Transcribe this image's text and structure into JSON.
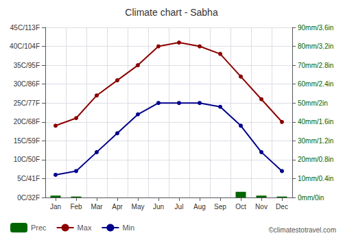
{
  "chart_data": {
    "type": "bar",
    "title": "Climate chart - Sabha",
    "categories": [
      "Jan",
      "Feb",
      "Mar",
      "Apr",
      "May",
      "Jun",
      "Jul",
      "Aug",
      "Sep",
      "Oct",
      "Nov",
      "Dec"
    ],
    "series": [
      {
        "name": "Prec",
        "type": "bar",
        "color": "#006400",
        "axis": "y2",
        "values": [
          1,
          0.5,
          0,
          0,
          0,
          0,
          0,
          0,
          0,
          3,
          1,
          0.5
        ]
      },
      {
        "name": "Max",
        "type": "line",
        "color": "#8B0000",
        "marker": "circle",
        "values": [
          19,
          21,
          27,
          31,
          35,
          40,
          41,
          40,
          38,
          32,
          26,
          20
        ]
      },
      {
        "name": "Min",
        "type": "line",
        "color": "#00008B",
        "marker": "circle",
        "values": [
          6,
          7,
          12,
          17,
          22,
          25,
          25,
          25,
          24,
          19,
          12,
          7
        ]
      }
    ],
    "ylim": [
      0,
      45
    ],
    "yticks": [
      {
        "value": 0,
        "label": "0C/32F"
      },
      {
        "value": 5,
        "label": "5C/41F"
      },
      {
        "value": 10,
        "label": "10C/50F"
      },
      {
        "value": 15,
        "label": "15C/59F"
      },
      {
        "value": 20,
        "label": "20C/68F"
      },
      {
        "value": 25,
        "label": "25C/77F"
      },
      {
        "value": 30,
        "label": "30C/86F"
      },
      {
        "value": 35,
        "label": "35C/95F"
      },
      {
        "value": 40,
        "label": "40C/104F"
      },
      {
        "value": 45,
        "label": "45C/113F"
      }
    ],
    "y2lim": [
      0,
      90
    ],
    "y2ticks": [
      {
        "value": 0,
        "label": "0mm/0in"
      },
      {
        "value": 10,
        "label": "10mm/0.4in"
      },
      {
        "value": 20,
        "label": "20mm/0.8in"
      },
      {
        "value": 30,
        "label": "30mm/1.2in"
      },
      {
        "value": 40,
        "label": "40mm/1.6in"
      },
      {
        "value": 50,
        "label": "50mm/2in"
      },
      {
        "value": 60,
        "label": "60mm/2.4in"
      },
      {
        "value": 70,
        "label": "70mm/2.8in"
      },
      {
        "value": 80,
        "label": "80mm/3.2in"
      },
      {
        "value": 90,
        "label": "90mm/3.6in"
      }
    ],
    "grid": true,
    "legend": "lower left",
    "annotations": [
      "©climatestotravel.com"
    ]
  }
}
